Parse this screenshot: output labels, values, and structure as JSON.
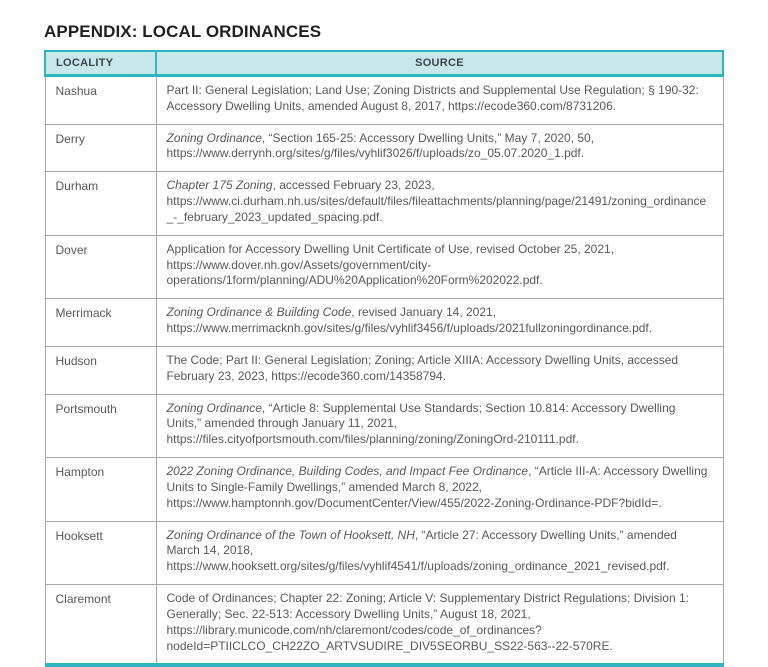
{
  "page": {
    "title": "APPENDIX: LOCAL ORDINANCES"
  },
  "colors": {
    "accent_teal": "#2fb4c1",
    "header_background": "#c7e7eb",
    "row_border_gray": "#a6a8ab",
    "body_text": "#57585a",
    "title_text": "#221f20"
  },
  "table": {
    "headers": [
      "LOCALITY",
      "SOURCE"
    ],
    "rows": [
      {
        "locality": "Nashua",
        "source": [
          {
            "italic": false,
            "text": "Part II: General Legislation; Land Use; Zoning Districts and Supplemental Use Regulation; § 190-32: Accessory Dwelling Units, amended August 8, 2017, https://ecode360.com/8731206."
          }
        ]
      },
      {
        "locality": "Derry",
        "source": [
          {
            "italic": true,
            "text": "Zoning Ordinance"
          },
          {
            "italic": false,
            "text": ", “Section 165-25: Accessory Dwelling Units,” May 7, 2020, 50, https://www.derrynh.org/sites/g/files/vyhlif3026/f/uploads/zo_05.07.2020_1.pdf."
          }
        ]
      },
      {
        "locality": "Durham",
        "source": [
          {
            "italic": true,
            "text": "Chapter 175 Zoning"
          },
          {
            "italic": false,
            "text": ", accessed February 23, 2023, https://www.ci.durham.nh.us/sites/default/files/fileattachments/planning/page/21491/zoning_ordinance_-_february_2023_updated_spacing.pdf."
          }
        ]
      },
      {
        "locality": "Dover",
        "source": [
          {
            "italic": false,
            "text": "Application for Accessory Dwelling Unit Certificate of Use, revised October 25, 2021, https://www.dover.nh.gov/Assets/government/city-operations/1form/planning/ADU%20Application%20Form%202022.pdf."
          }
        ]
      },
      {
        "locality": "Merrimack",
        "source": [
          {
            "italic": true,
            "text": "Zoning Ordinance & Building Code"
          },
          {
            "italic": false,
            "text": ", revised January 14, 2021, https://www.merrimacknh.gov/sites/g/files/vyhlif3456/f/uploads/2021fullzoningordinance.pdf."
          }
        ]
      },
      {
        "locality": "Hudson",
        "source": [
          {
            "italic": false,
            "text": "The Code; Part II: General Legislation; Zoning; Article XIIIA: Accessory Dwelling Units, accessed February 23, 2023, https://ecode360.com/14358794."
          }
        ]
      },
      {
        "locality": "Portsmouth",
        "source": [
          {
            "italic": true,
            "text": "Zoning Ordinance"
          },
          {
            "italic": false,
            "text": ", “Article 8: Supplemental Use Standards; Section 10.814: Accessory Dwelling Units,” amended through January 11, 2021, https://files.cityofportsmouth.com/files/planning/zoning/ZoningOrd-210111.pdf."
          }
        ]
      },
      {
        "locality": "Hampton",
        "source": [
          {
            "italic": true,
            "text": "2022 Zoning Ordinance, Building Codes, and Impact Fee Ordinance"
          },
          {
            "italic": false,
            "text": ", “Article III-A: Accessory Dwelling Units to Single-Family Dwellings,” amended March 8, 2022, https://www.hamptonnh.gov/DocumentCenter/View/455/2022-Zoning-Ordinance-PDF?bidId=."
          }
        ]
      },
      {
        "locality": "Hooksett",
        "source": [
          {
            "italic": true,
            "text": "Zoning Ordinance of the Town of Hooksett, NH"
          },
          {
            "italic": false,
            "text": ", “Article 27: Accessory Dwelling Units,” amended March 14, 2018, https://www.hooksett.org/sites/g/files/vyhlif4541/f/uploads/zoning_ordinance_2021_revised.pdf."
          }
        ]
      },
      {
        "locality": "Claremont",
        "source": [
          {
            "italic": false,
            "text": "Code of Ordinances; Chapter 22: Zoning; Article V: Supplementary District Regulations; Division 1: Generally; Sec. 22-513: Accessory Dwelling Units,” August 18, 2021, https://library.municode.com/nh/claremont/codes/code_of_ordinances?nodeId=PTIICLCO_CH22ZO_ARTVSUDIRE_DIV5SEORBU_SS22-563--22-570RE."
          }
        ]
      }
    ]
  }
}
